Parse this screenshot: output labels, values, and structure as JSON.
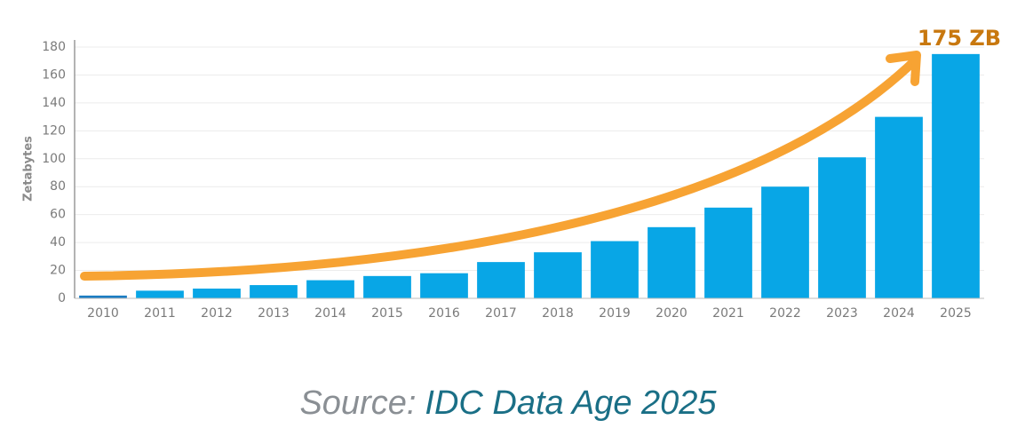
{
  "chart_data": {
    "type": "bar",
    "y_label": "Zetabytes",
    "annotation": "175 ZB",
    "source_prefix": "Source:",
    "source": "IDC Data Age 2025",
    "categories": [
      "2010",
      "2011",
      "2012",
      "2013",
      "2014",
      "2015",
      "2016",
      "2017",
      "2018",
      "2019",
      "2020",
      "2021",
      "2022",
      "2023",
      "2024",
      "2025"
    ],
    "values": [
      2,
      5.5,
      7,
      9.5,
      13,
      16,
      18,
      26,
      33,
      41,
      51,
      65,
      80,
      101,
      130,
      175
    ],
    "colors": [
      "#1a7cc2",
      "#08a6e6",
      "#08a6e6",
      "#08a6e6",
      "#08a6e6",
      "#08a6e6",
      "#08a6e6",
      "#08a6e6",
      "#08a6e6",
      "#08a6e6",
      "#08a6e6",
      "#08a6e6",
      "#08a6e6",
      "#08a6e6",
      "#08a6e6",
      "#08a6e6"
    ],
    "ylim": [
      0,
      180
    ],
    "yticks": [
      0,
      20,
      40,
      60,
      80,
      100,
      120,
      140,
      160,
      180
    ],
    "grid": true
  }
}
